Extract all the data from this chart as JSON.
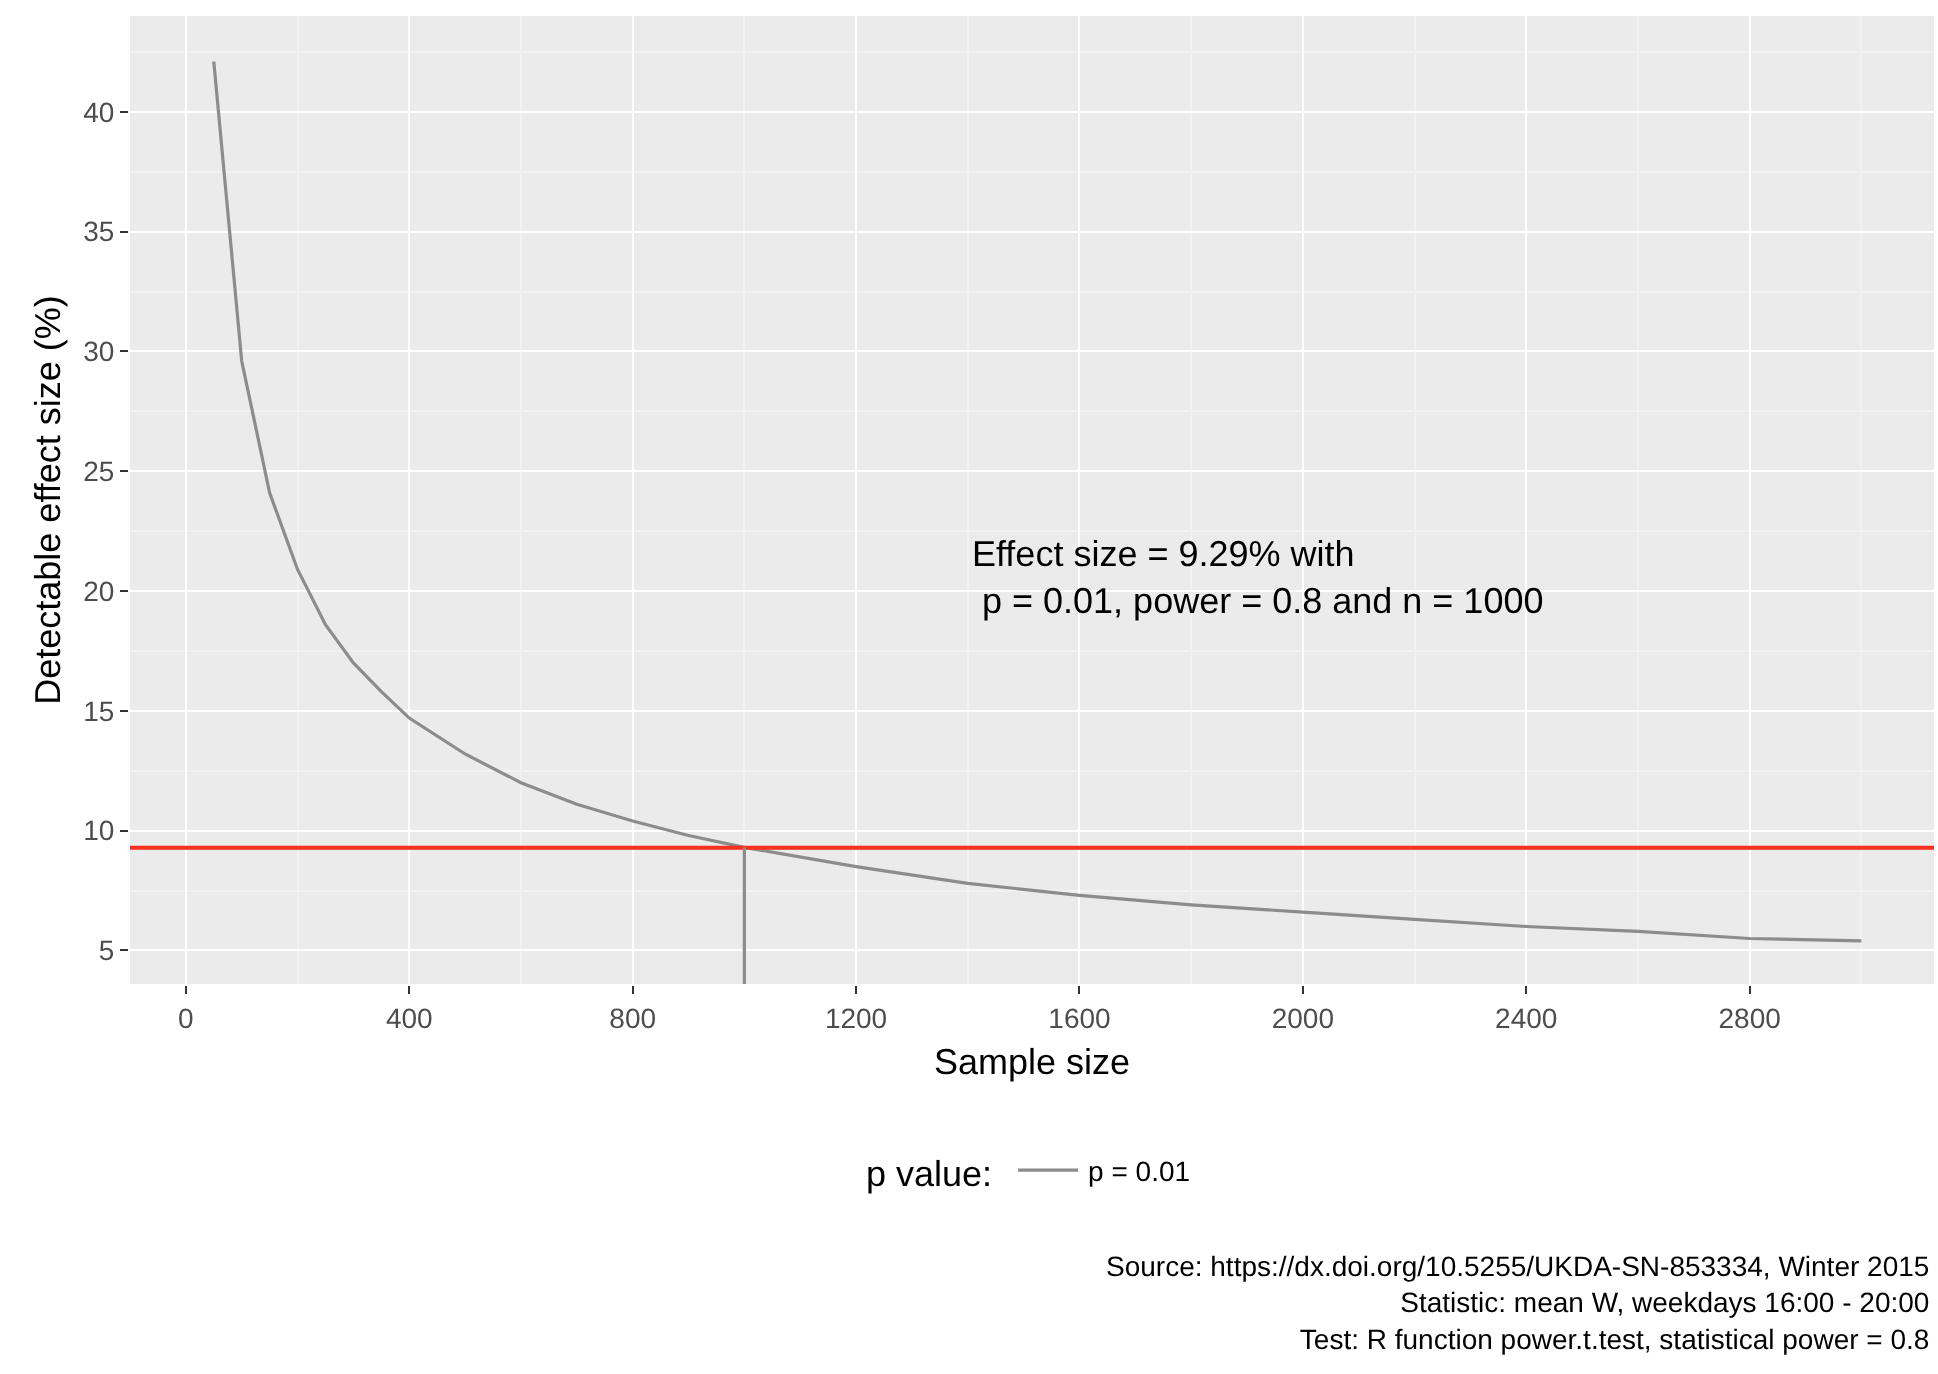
{
  "chart_data": {
    "type": "line",
    "xlabel": "Sample size",
    "ylabel": "Detectable effect size (%)",
    "legend_title": "p value:",
    "x": [
      50,
      100,
      150,
      200,
      250,
      300,
      350,
      400,
      500,
      600,
      700,
      800,
      900,
      1000,
      1200,
      1400,
      1600,
      1800,
      2000,
      2200,
      2400,
      2600,
      2800,
      3000
    ],
    "series": [
      {
        "name": "p = 0.01",
        "color": "#8c8c8c",
        "values": [
          42.1,
          29.6,
          24.1,
          20.9,
          18.6,
          17.0,
          15.8,
          14.7,
          13.2,
          12.0,
          11.1,
          10.4,
          9.8,
          9.3,
          8.5,
          7.8,
          7.3,
          6.9,
          6.6,
          6.3,
          6.0,
          5.8,
          5.5,
          5.4
        ]
      }
    ],
    "xlim": [
      -100,
      3130
    ],
    "xticks": [
      0,
      400,
      800,
      1200,
      1600,
      2000,
      2400,
      2800
    ],
    "ylim": [
      3.6,
      44
    ],
    "yticks": [
      5,
      10,
      15,
      20,
      25,
      30,
      35,
      40
    ],
    "ref_lines": [
      {
        "axis": "y",
        "value": 9.29,
        "color": "#f8301f"
      },
      {
        "axis": "x",
        "value": 1000,
        "color": "#8c8c8c"
      }
    ],
    "annotations": [
      "Effect size = 9.29% with\n p = 0.01, power = 0.8 and n = 1000",
      "Source: https://dx.doi.org/10.5255/UKDA-SN-853334, Winter 2015\nStatistic: mean W, weekdays 16:00 - 20:00\nTest: R function power.t.test, statistical power = 0.8"
    ],
    "grid": true,
    "legend": "bottom",
    "marker": "none",
    "line_style": "solid"
  }
}
